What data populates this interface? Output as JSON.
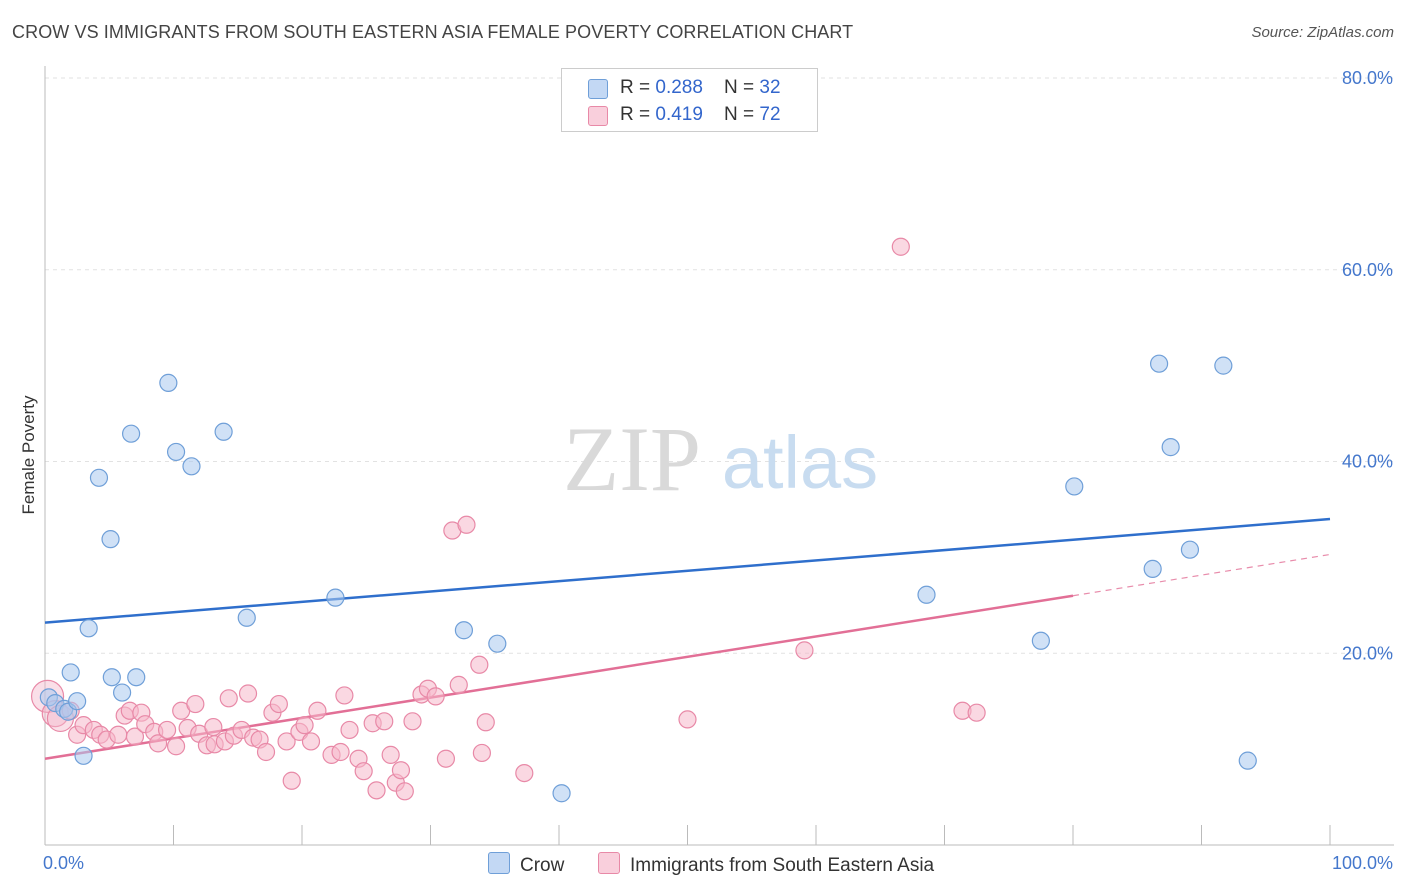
{
  "title": "CROW VS IMMIGRANTS FROM SOUTH EASTERN ASIA FEMALE POVERTY CORRELATION CHART",
  "source": "Source: ZipAtlas.com",
  "watermark": {
    "zip": "ZIP",
    "atlas": "atlas"
  },
  "legend": {
    "rows": [
      {
        "r_label": "R = ",
        "r_value": "0.288",
        "n_label": "N = ",
        "n_value": "32"
      },
      {
        "r_label": "R = ",
        "r_value": "0.419",
        "n_label": "N = ",
        "n_value": "72"
      }
    ]
  },
  "chart_data": {
    "type": "scatter",
    "title": "CROW VS IMMIGRANTS FROM SOUTH EASTERN ASIA FEMALE POVERTY CORRELATION CHART",
    "xlabel": "",
    "ylabel": "Female Poverty",
    "xlim": [
      0,
      100
    ],
    "ylim": [
      0,
      80
    ],
    "x_tick_labels": [
      "0.0%",
      "100.0%"
    ],
    "y_ticks": [
      20,
      40,
      60,
      80
    ],
    "y_tick_labels": [
      "20.0%",
      "40.0%",
      "60.0%",
      "80.0%"
    ],
    "grid": true,
    "legend_position": "top-center",
    "series": [
      {
        "name": "Crow",
        "color": "#aac8ee",
        "edge_color": "#6f9fd8",
        "r": 0.288,
        "n": 32,
        "trend": {
          "x": [
            0,
            100
          ],
          "y": [
            23.2,
            34.0
          ],
          "color": "#2f6fcc"
        },
        "points": [
          [
            0.3,
            15.4
          ],
          [
            0.8,
            14.8
          ],
          [
            1.5,
            14.2
          ],
          [
            1.8,
            13.9
          ],
          [
            2.0,
            18.0
          ],
          [
            2.5,
            15.0
          ],
          [
            3.0,
            9.3
          ],
          [
            3.4,
            22.6
          ],
          [
            4.2,
            38.3
          ],
          [
            5.1,
            31.9
          ],
          [
            5.2,
            17.5
          ],
          [
            6.0,
            15.9
          ],
          [
            6.7,
            42.9
          ],
          [
            7.1,
            17.5
          ],
          [
            9.6,
            48.2
          ],
          [
            10.2,
            41.0
          ],
          [
            11.4,
            39.5
          ],
          [
            13.9,
            43.1
          ],
          [
            15.7,
            23.7
          ],
          [
            22.6,
            25.8
          ],
          [
            32.6,
            22.4
          ],
          [
            35.2,
            21.0
          ],
          [
            40.2,
            5.4
          ],
          [
            68.6,
            26.1
          ],
          [
            77.5,
            21.3
          ],
          [
            80.1,
            37.4
          ],
          [
            86.2,
            28.8
          ],
          [
            86.7,
            50.2
          ],
          [
            87.6,
            41.5
          ],
          [
            89.1,
            30.8
          ],
          [
            91.7,
            50.0
          ],
          [
            93.6,
            8.8
          ]
        ]
      },
      {
        "name": "Immigrants from South Eastern Asia",
        "color": "#f5b8cb",
        "edge_color": "#e889a7",
        "r": 0.419,
        "n": 72,
        "trend": {
          "x": [
            0,
            80
          ],
          "y": [
            9.0,
            26.0
          ],
          "x_dashed": [
            80,
            100
          ],
          "y_dashed": [
            26.0,
            30.3
          ],
          "color": "#e26f96"
        },
        "points": [
          [
            0.2,
            15.5
          ],
          [
            0.8,
            13.7
          ],
          [
            1.2,
            13.2
          ],
          [
            2.0,
            14.0
          ],
          [
            2.5,
            11.5
          ],
          [
            3.0,
            12.5
          ],
          [
            3.8,
            12.0
          ],
          [
            4.3,
            11.5
          ],
          [
            4.8,
            11.0
          ],
          [
            5.7,
            11.5
          ],
          [
            6.2,
            13.5
          ],
          [
            6.6,
            14.0
          ],
          [
            7.0,
            11.3
          ],
          [
            7.5,
            13.8
          ],
          [
            7.8,
            12.6
          ],
          [
            8.5,
            11.8
          ],
          [
            8.8,
            10.6
          ],
          [
            9.5,
            12.0
          ],
          [
            10.2,
            10.3
          ],
          [
            10.6,
            14.0
          ],
          [
            11.1,
            12.2
          ],
          [
            11.7,
            14.7
          ],
          [
            12.0,
            11.6
          ],
          [
            12.6,
            10.4
          ],
          [
            13.1,
            12.3
          ],
          [
            13.2,
            10.5
          ],
          [
            14.0,
            10.8
          ],
          [
            14.3,
            15.3
          ],
          [
            14.7,
            11.4
          ],
          [
            15.3,
            12.0
          ],
          [
            15.8,
            15.8
          ],
          [
            16.2,
            11.2
          ],
          [
            16.7,
            11.0
          ],
          [
            17.2,
            9.7
          ],
          [
            17.7,
            13.8
          ],
          [
            18.2,
            14.7
          ],
          [
            18.8,
            10.8
          ],
          [
            19.2,
            6.7
          ],
          [
            19.8,
            11.8
          ],
          [
            20.2,
            12.5
          ],
          [
            20.7,
            10.8
          ],
          [
            21.2,
            14.0
          ],
          [
            22.3,
            9.4
          ],
          [
            23.0,
            9.7
          ],
          [
            23.3,
            15.6
          ],
          [
            23.7,
            12.0
          ],
          [
            24.4,
            9.0
          ],
          [
            24.8,
            7.7
          ],
          [
            25.5,
            12.7
          ],
          [
            25.8,
            5.7
          ],
          [
            26.4,
            12.9
          ],
          [
            26.9,
            9.4
          ],
          [
            27.3,
            6.5
          ],
          [
            27.7,
            7.8
          ],
          [
            28.0,
            5.6
          ],
          [
            28.6,
            12.9
          ],
          [
            29.3,
            15.7
          ],
          [
            29.8,
            16.3
          ],
          [
            30.4,
            15.5
          ],
          [
            31.2,
            9.0
          ],
          [
            31.7,
            32.8
          ],
          [
            32.2,
            16.7
          ],
          [
            32.8,
            33.4
          ],
          [
            33.8,
            18.8
          ],
          [
            34.0,
            9.6
          ],
          [
            34.3,
            12.8
          ],
          [
            37.3,
            7.5
          ],
          [
            50.0,
            13.1
          ],
          [
            59.1,
            20.3
          ],
          [
            66.6,
            62.4
          ],
          [
            71.4,
            14.0
          ],
          [
            72.5,
            13.8
          ]
        ]
      }
    ]
  },
  "bottom_legend": [
    {
      "label": "Crow"
    },
    {
      "label": "Immigrants from South Eastern Asia"
    }
  ]
}
